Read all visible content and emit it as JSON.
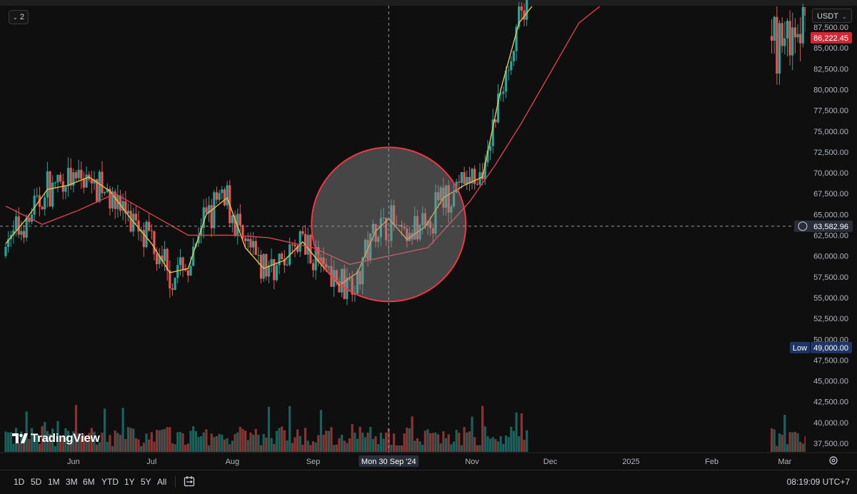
{
  "legend_toggle": {
    "count": "2"
  },
  "currency": {
    "label": "USDT"
  },
  "branding": {
    "name": "TradingView"
  },
  "timeframes": [
    "1D",
    "5D",
    "1M",
    "3M",
    "6M",
    "YTD",
    "1Y",
    "5Y",
    "All"
  ],
  "clock": "08:19:09 UTC+7",
  "colors": {
    "background": "#0f0f0f",
    "candle_up": "#26a69a",
    "candle_down": "#ef5350",
    "ma_fast": "#e5c14f",
    "ma_slow": "#d8404f",
    "highlight_circle_fill": "#8a8a8a",
    "highlight_circle_stroke": "#f23645",
    "price_badge_red": "#ce2a35",
    "low_badge": "#1f3566"
  },
  "chart_data": {
    "type": "candlestick",
    "instrument_quote": "USDT",
    "ylim": [
      37500,
      89000
    ],
    "y_ticks": [
      37500,
      40000,
      42500,
      45000,
      47500,
      50000,
      52500,
      55000,
      57500,
      60000,
      62500,
      65000,
      67500,
      70000,
      72500,
      75000,
      77500,
      80000,
      82500,
      85000,
      87500
    ],
    "x_range": [
      "2024-05-06",
      "2025-03-09"
    ],
    "x_ticks": [
      {
        "label": "Jun",
        "date": "2024-06-01"
      },
      {
        "label": "Jul",
        "date": "2024-07-01"
      },
      {
        "label": "Aug",
        "date": "2024-08-01"
      },
      {
        "label": "Sep",
        "date": "2024-09-01"
      },
      {
        "label": "Nov",
        "date": "2024-11-01"
      },
      {
        "label": "Dec",
        "date": "2024-12-01"
      },
      {
        "label": "2025",
        "date": "2025-01-01"
      },
      {
        "label": "Feb",
        "date": "2025-02-01"
      },
      {
        "label": "Mar",
        "date": "2025-03-01"
      }
    ],
    "crosshair": {
      "date": "2024-09-30",
      "date_label": "Mon 30 Sep '24",
      "price": 63582.96,
      "price_label": "63,582.96"
    },
    "last_price": {
      "value": 86222.45,
      "label": "86,222.45"
    },
    "low_marker": {
      "tag": "Low",
      "value": 49000,
      "label": "49,000.00"
    },
    "highlight_circle": {
      "center_date": "2024-09-30",
      "center_price": 63800,
      "note": ""
    },
    "series": [
      {
        "kind": "ma_fast",
        "points": [
          [
            "2024-05-06",
            61500
          ],
          [
            "2024-05-14",
            64500
          ],
          [
            "2024-05-22",
            68000
          ],
          [
            "2024-05-30",
            68500
          ],
          [
            "2024-06-07",
            69500
          ],
          [
            "2024-06-15",
            67800
          ],
          [
            "2024-06-23",
            64500
          ],
          [
            "2024-07-01",
            61500
          ],
          [
            "2024-07-08",
            58000
          ],
          [
            "2024-07-15",
            58500
          ],
          [
            "2024-07-22",
            65000
          ],
          [
            "2024-07-30",
            67000
          ],
          [
            "2024-08-06",
            61000
          ],
          [
            "2024-08-13",
            58500
          ],
          [
            "2024-08-21",
            59500
          ],
          [
            "2024-08-28",
            61700
          ],
          [
            "2024-09-04",
            59000
          ],
          [
            "2024-09-11",
            56500
          ],
          [
            "2024-09-18",
            58000
          ],
          [
            "2024-09-25",
            63000
          ],
          [
            "2024-09-30",
            64500
          ],
          [
            "2024-10-07",
            62000
          ],
          [
            "2024-10-14",
            63500
          ],
          [
            "2024-10-21",
            67000
          ],
          [
            "2024-10-29",
            68500
          ],
          [
            "2024-11-05",
            69500
          ],
          [
            "2024-11-12",
            80000
          ],
          [
            "2024-11-19",
            88000
          ],
          [
            "2024-11-24",
            90000
          ]
        ]
      },
      {
        "kind": "ma_slow",
        "points": [
          [
            "2024-05-06",
            66000
          ],
          [
            "2024-05-20",
            63800
          ],
          [
            "2024-06-03",
            65500
          ],
          [
            "2024-06-17",
            67500
          ],
          [
            "2024-07-01",
            65000
          ],
          [
            "2024-07-15",
            62500
          ],
          [
            "2024-08-01",
            62500
          ],
          [
            "2024-08-15",
            62200
          ],
          [
            "2024-09-01",
            61000
          ],
          [
            "2024-09-15",
            59000
          ],
          [
            "2024-09-30",
            60000
          ],
          [
            "2024-10-15",
            61000
          ],
          [
            "2024-10-31",
            66500
          ],
          [
            "2024-11-10",
            71000
          ],
          [
            "2024-11-20",
            76000
          ],
          [
            "2024-12-01",
            82000
          ],
          [
            "2024-12-12",
            88000
          ],
          [
            "2024-12-20",
            90000
          ]
        ]
      }
    ]
  }
}
